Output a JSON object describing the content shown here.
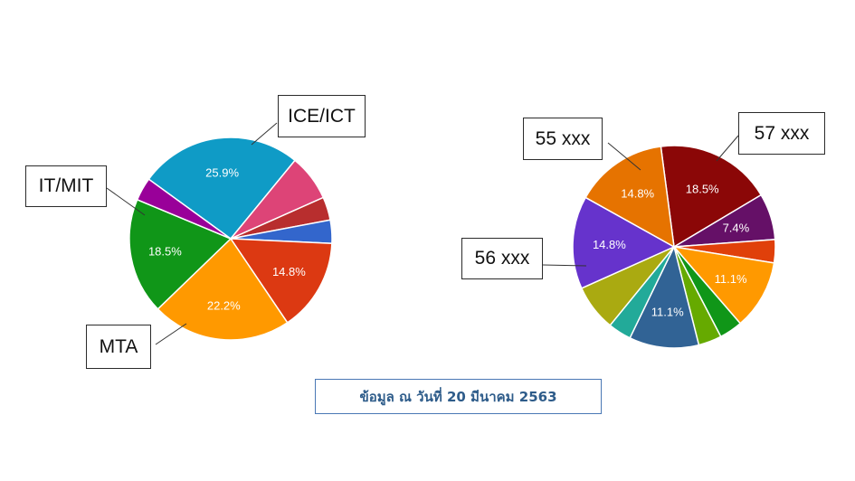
{
  "chart_data": [
    {
      "type": "pie",
      "slices": [
        {
          "label": "ICE/ICT",
          "value": 25.9,
          "display": "25.9%",
          "color": "#0f9bc6"
        },
        {
          "label": "",
          "value": 7.4,
          "display": "",
          "color": "#dd4477"
        },
        {
          "label": "",
          "value": 3.7,
          "display": "",
          "color": "#b82e2e"
        },
        {
          "label": "",
          "value": 3.7,
          "display": "",
          "color": "#3366cc"
        },
        {
          "label": "",
          "value": 14.8,
          "display": "14.8%",
          "color": "#dc3912"
        },
        {
          "label": "MTA",
          "value": 22.2,
          "display": "22.2%",
          "color": "#ff9900"
        },
        {
          "label": "IT/MIT",
          "value": 18.5,
          "display": "18.5%",
          "color": "#109618"
        },
        {
          "label": "",
          "value": 3.7,
          "display": "",
          "color": "#990099"
        }
      ]
    },
    {
      "type": "pie",
      "slices": [
        {
          "label": "57 xxx",
          "value": 18.5,
          "display": "18.5%",
          "color": "#8b0707"
        },
        {
          "label": "",
          "value": 7.4,
          "display": "7.4%",
          "color": "#651067"
        },
        {
          "label": "",
          "value": 3.7,
          "display": "",
          "color": "#e0400a"
        },
        {
          "label": "",
          "value": 11.1,
          "display": "11.1%",
          "color": "#ff9900"
        },
        {
          "label": "",
          "value": 3.7,
          "display": "",
          "color": "#109618"
        },
        {
          "label": "",
          "value": 3.7,
          "display": "",
          "color": "#66aa00"
        },
        {
          "label": "",
          "value": 11.1,
          "display": "11.1%",
          "color": "#316395"
        },
        {
          "label": "",
          "value": 3.7,
          "display": "",
          "color": "#22aa99"
        },
        {
          "label": "",
          "value": 7.4,
          "display": "",
          "color": "#aaaa11"
        },
        {
          "label": "56 xxx",
          "value": 14.8,
          "display": "14.8%",
          "color": "#6633cc"
        },
        {
          "label": "55 xxx",
          "value": 14.8,
          "display": "14.8%",
          "color": "#e67300"
        }
      ]
    }
  ],
  "caption": "ข้อมูล ณ วันที่ 20 มีนาคม 2563"
}
